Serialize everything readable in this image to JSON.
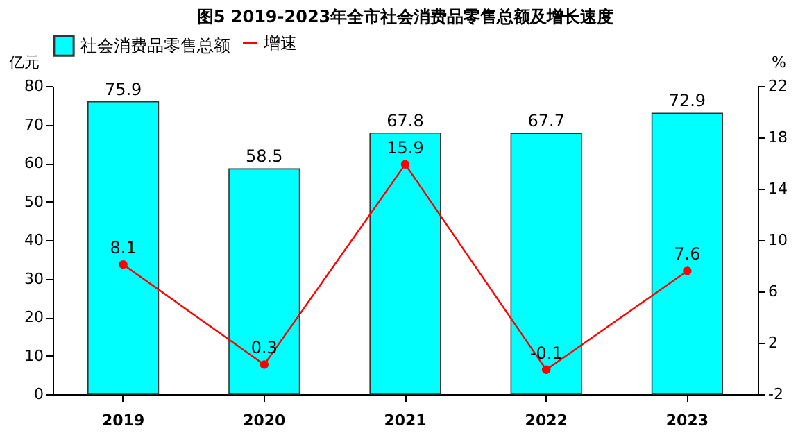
{
  "chart_data": {
    "type": "bar",
    "title": "图5  2019-2023年全市社会消费品零售总额及增长速度",
    "ylabel": "亿元",
    "y2label": "%",
    "categories": [
      "2019",
      "2020",
      "2021",
      "2022",
      "2023"
    ],
    "series": [
      {
        "name": "社会消费品零售总额",
        "color": "#00ffff",
        "values": [
          75.9,
          58.5,
          67.8,
          67.7,
          72.9
        ]
      },
      {
        "name": "增速",
        "type": "line",
        "color": "#ff0000",
        "axis": "y2",
        "values": [
          8.1,
          0.3,
          15.9,
          -0.1,
          7.6
        ]
      }
    ],
    "ylim": [
      0,
      80
    ],
    "yticks": [
      0,
      10,
      20,
      30,
      40,
      50,
      60,
      70,
      80
    ],
    "y2lim": [
      -2,
      22
    ],
    "y2ticks": [
      -2,
      2,
      6,
      10,
      14,
      18,
      22
    ],
    "marker": "circle",
    "data_labels": true,
    "legend": "top"
  }
}
